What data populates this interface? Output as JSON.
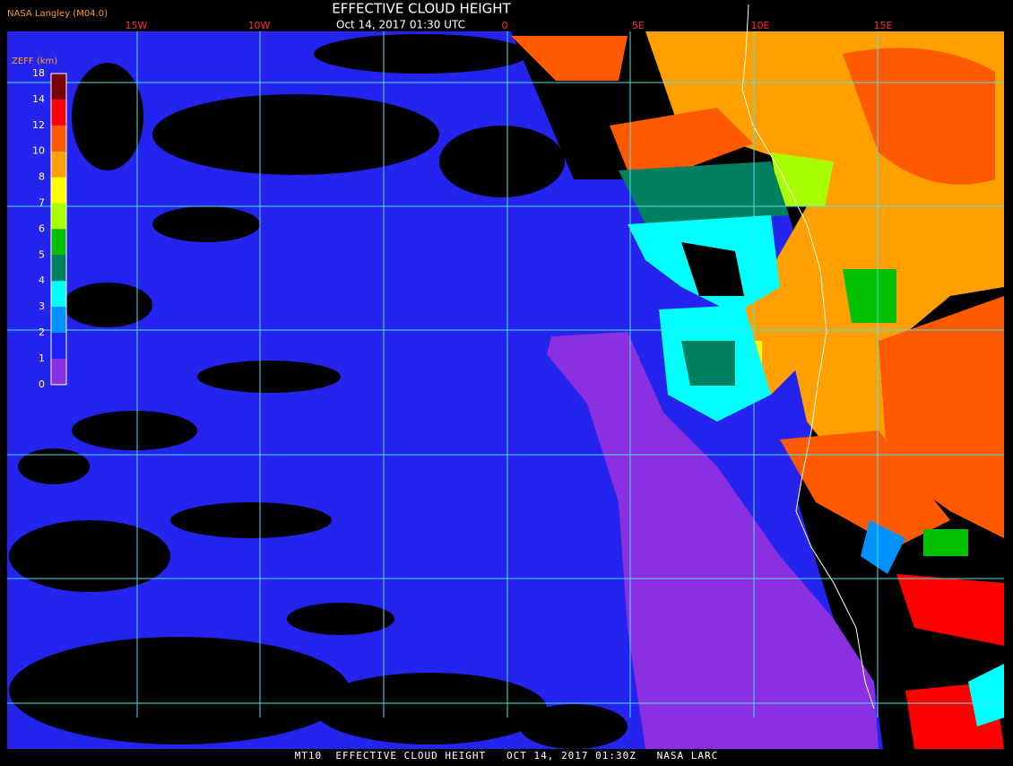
{
  "header": {
    "source": "NASA Langley (M04.0)",
    "title": "EFFECTIVE CLOUD HEIGHT",
    "timestamp": "Oct 14, 2017 01:30 UTC"
  },
  "longitude_labels": [
    "15W",
    "10W",
    "0",
    "5E",
    "10E",
    "15E"
  ],
  "legend": {
    "title": "ZEFF (km)",
    "ticks": [
      18,
      14,
      12,
      10,
      8,
      7,
      6,
      5,
      4,
      3,
      2,
      1,
      0
    ],
    "colors": [
      "#7a0000",
      "#ff0000",
      "#ff5a00",
      "#ffa000",
      "#ffff00",
      "#a8ff00",
      "#00c000",
      "#008060",
      "#00ffff",
      "#0090ff",
      "#2020ff",
      "#8a30e0"
    ]
  },
  "footer": "MT10  EFFECTIVE CLOUD HEIGHT   OCT 14, 2017 01:30Z   NASA LARC"
}
